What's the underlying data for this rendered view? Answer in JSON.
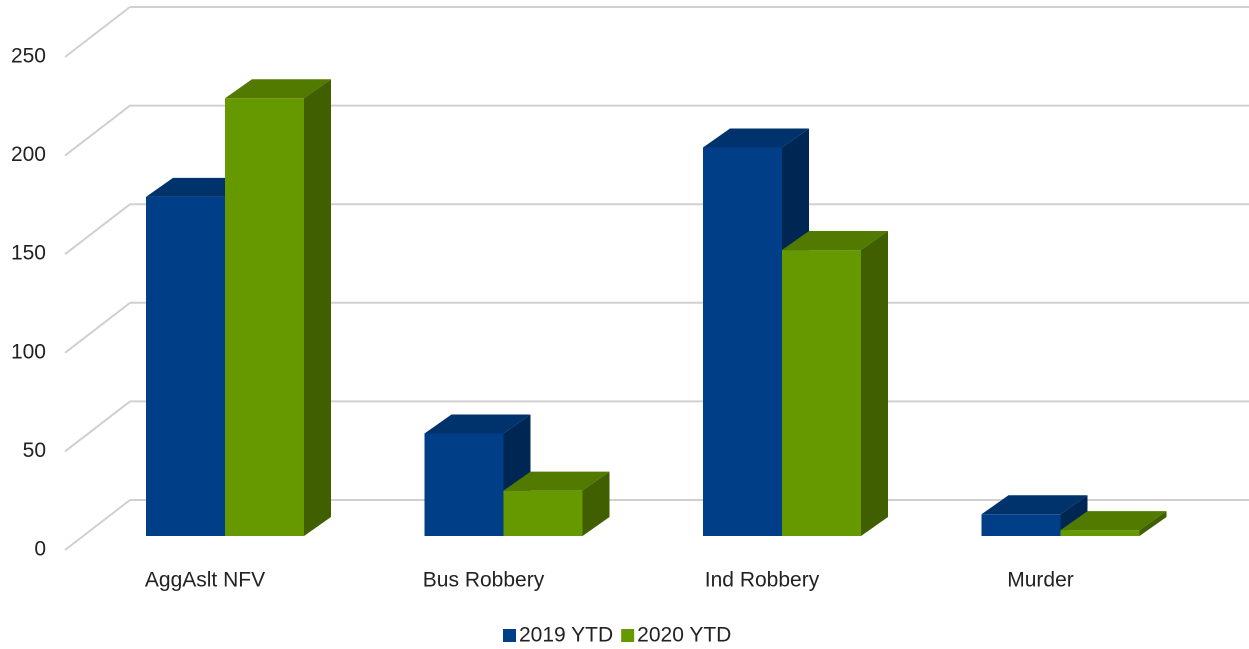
{
  "chart_data": {
    "type": "bar",
    "categories": [
      "AggAslt NFV",
      "Bus Robbery",
      "Ind Robbery",
      "Murder"
    ],
    "series": [
      {
        "name": "2019 YTD",
        "color": "#003f87",
        "values": [
          172,
          52,
          197,
          11
        ]
      },
      {
        "name": "2020 YTD",
        "color": "#669900",
        "values": [
          222,
          23,
          145,
          3
        ]
      }
    ],
    "ylim": [
      0,
      250
    ],
    "yticks": [
      0,
      50,
      100,
      150,
      200,
      250
    ],
    "grid": true,
    "legend": "bottom"
  }
}
